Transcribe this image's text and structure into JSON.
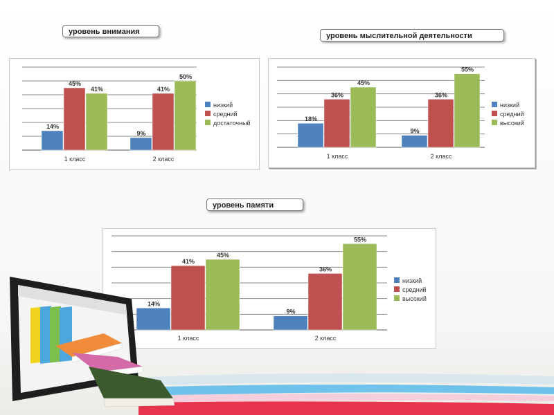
{
  "titles": {
    "attention": "уровень внимания",
    "thinking": "уровень мыслительной деятельности",
    "memory": "уровень памяти"
  },
  "colors": {
    "low": "#4f81bd",
    "medium": "#c0504d",
    "high": "#9bbb59",
    "stripe_top": "#6fc3ea",
    "stripe_mid": "#f2c9d6",
    "stripe_bottom": "#e8334f"
  },
  "chart_data": [
    {
      "id": "attention",
      "type": "bar",
      "categories": [
        "1 класс",
        "2 класс"
      ],
      "series": [
        {
          "name": "низкий",
          "values": [
            14,
            9
          ],
          "labels": [
            "14%",
            "9%"
          ]
        },
        {
          "name": "средний",
          "values": [
            45,
            41
          ],
          "labels": [
            "45%",
            "41%"
          ]
        },
        {
          "name": "достаточный",
          "values": [
            41,
            50
          ],
          "labels": [
            "41%",
            "50%"
          ]
        }
      ],
      "ylim": [
        0,
        60
      ],
      "grid": true,
      "legend": "right"
    },
    {
      "id": "thinking",
      "type": "bar",
      "categories": [
        "1 класс",
        "2 класс"
      ],
      "series": [
        {
          "name": "низкий",
          "values": [
            18,
            9
          ],
          "labels": [
            "18%",
            "9%"
          ]
        },
        {
          "name": "средний",
          "values": [
            36,
            36
          ],
          "labels": [
            "36%",
            "36%"
          ]
        },
        {
          "name": "высокий",
          "values": [
            45,
            55
          ],
          "labels": [
            "45%",
            "55%"
          ]
        }
      ],
      "ylim": [
        0,
        60
      ],
      "grid": true,
      "legend": "right"
    },
    {
      "id": "memory",
      "type": "bar",
      "categories": [
        "1 класс",
        "2 класс"
      ],
      "series": [
        {
          "name": "низкий",
          "values": [
            14,
            9
          ],
          "labels": [
            "14%",
            "9%"
          ]
        },
        {
          "name": "средний",
          "values": [
            41,
            36
          ],
          "labels": [
            "41%",
            "36%"
          ]
        },
        {
          "name": "высокий",
          "values": [
            45,
            55
          ],
          "labels": [
            "45%",
            "55%"
          ]
        }
      ],
      "ylim": [
        0,
        60
      ],
      "grid": true,
      "legend": "right"
    }
  ]
}
